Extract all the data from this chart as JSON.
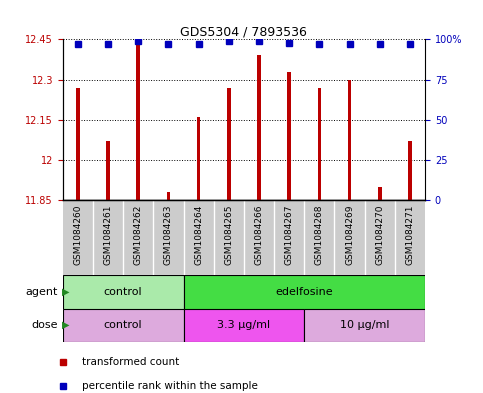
{
  "title": "GDS5304 / 7893536",
  "samples": [
    "GSM1084260",
    "GSM1084261",
    "GSM1084262",
    "GSM1084263",
    "GSM1084264",
    "GSM1084265",
    "GSM1084266",
    "GSM1084267",
    "GSM1084268",
    "GSM1084269",
    "GSM1084270",
    "GSM1084271"
  ],
  "transformed_counts": [
    12.27,
    12.07,
    12.44,
    11.88,
    12.16,
    12.27,
    12.39,
    12.33,
    12.27,
    12.3,
    11.9,
    12.07
  ],
  "percentile_ranks": [
    97,
    97,
    99,
    97,
    97,
    99,
    99,
    98,
    97,
    97,
    97,
    97
  ],
  "ylim_left": [
    11.85,
    12.45
  ],
  "yticks_left": [
    11.85,
    12.0,
    12.15,
    12.3,
    12.45
  ],
  "ytick_labels_left": [
    "11.85",
    "12",
    "12.15",
    "12.3",
    "12.45"
  ],
  "ylim_right": [
    0,
    100
  ],
  "yticks_right": [
    0,
    25,
    50,
    75,
    100
  ],
  "ytick_labels_right": [
    "0",
    "25",
    "50",
    "75",
    "100%"
  ],
  "bar_color": "#bb0000",
  "dot_color": "#0000bb",
  "bar_bottom": 11.85,
  "agent_groups": [
    {
      "label": "control",
      "start": 0,
      "end": 4,
      "color": "#aaeaaa"
    },
    {
      "label": "edelfosine",
      "start": 4,
      "end": 12,
      "color": "#44dd44"
    }
  ],
  "dose_groups": [
    {
      "label": "control",
      "start": 0,
      "end": 4,
      "color": "#ddaadd"
    },
    {
      "label": "3.3 μg/ml",
      "start": 4,
      "end": 8,
      "color": "#ee55ee"
    },
    {
      "label": "10 μg/ml",
      "start": 8,
      "end": 12,
      "color": "#ddaadd"
    }
  ],
  "legend_items": [
    {
      "color": "#bb0000",
      "label": "transformed count"
    },
    {
      "color": "#0000bb",
      "label": "percentile rank within the sample"
    }
  ],
  "left_color": "#bb0000",
  "right_color": "#0000bb"
}
